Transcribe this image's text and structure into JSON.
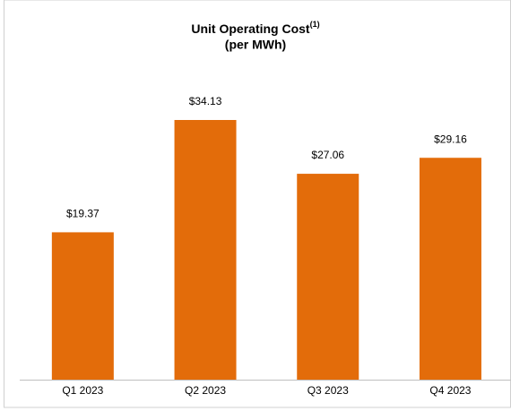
{
  "chart_data": {
    "type": "bar",
    "title": "Unit Operating Cost",
    "title_note": "(1)",
    "subtitle": "(per MWh)",
    "categories": [
      "Q1 2023",
      "Q2 2023",
      "Q3 2023",
      "Q4 2023"
    ],
    "values": [
      19.37,
      34.13,
      27.06,
      29.16
    ],
    "value_labels": [
      "$19.37",
      "$34.13",
      "$27.06",
      "$29.16"
    ],
    "color": "#e36c0a"
  }
}
